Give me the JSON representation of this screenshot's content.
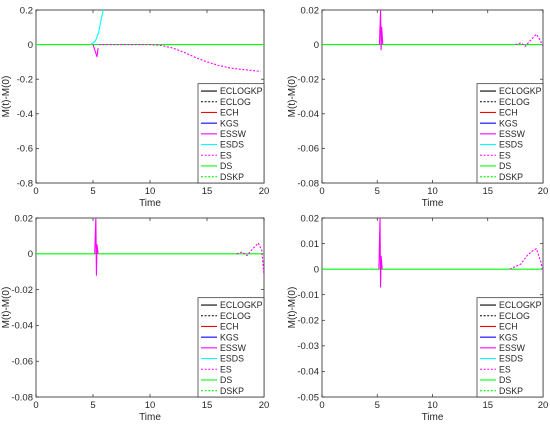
{
  "figure": {
    "background": "#ffffff",
    "axis_color": "#262626"
  },
  "legend_items": [
    {
      "label": "ECLOGKP",
      "color": "#000000",
      "dash": "solid"
    },
    {
      "label": "ECLOG",
      "color": "#000000",
      "dash": "dotted"
    },
    {
      "label": "ECH",
      "color": "#ff0000",
      "dash": "solid"
    },
    {
      "label": "KGS",
      "color": "#0000ff",
      "dash": "solid"
    },
    {
      "label": "ESSW",
      "color": "#ff00ff",
      "dash": "solid"
    },
    {
      "label": "ESDS",
      "color": "#00ffff",
      "dash": "solid"
    },
    {
      "label": "ES",
      "color": "#ff00ff",
      "dash": "dotted"
    },
    {
      "label": "DS",
      "color": "#00ff00",
      "dash": "solid"
    },
    {
      "label": "DSKP",
      "color": "#00ff00",
      "dash": "dotted"
    }
  ],
  "chart_data": [
    {
      "type": "line",
      "xlabel": "Time",
      "ylabel": "M(t)-M(0)",
      "xlim": [
        0,
        20
      ],
      "ylim": [
        -0.8,
        0.2
      ],
      "xticks": [
        "0",
        "5",
        "10",
        "15",
        "20"
      ],
      "yticks": [
        "0.2",
        "0",
        "-0.2",
        "-0.4",
        "-0.6",
        "-0.8"
      ],
      "legend_position": "bottom-right",
      "series": [
        {
          "name": "DS",
          "x": [
            0,
            20
          ],
          "y": [
            0,
            0
          ]
        },
        {
          "name": "ESDS",
          "x": [
            4.8,
            5.2,
            5.5,
            5.7,
            5.9
          ],
          "y": [
            0,
            0.02,
            0.07,
            0.14,
            0.2
          ]
        },
        {
          "name": "ESSW",
          "x": [
            5.0,
            5.1,
            5.25,
            5.35,
            5.45
          ],
          "y": [
            0,
            -0.02,
            -0.05,
            -0.07,
            -0.02
          ]
        },
        {
          "name": "ES",
          "x": [
            5.5,
            8,
            10,
            11,
            12,
            13,
            14,
            15,
            16,
            17,
            18,
            19,
            19.7
          ],
          "y": [
            0,
            0,
            0,
            -0.005,
            -0.02,
            -0.045,
            -0.075,
            -0.1,
            -0.12,
            -0.135,
            -0.143,
            -0.15,
            -0.155
          ]
        }
      ]
    },
    {
      "type": "line",
      "xlabel": "Time",
      "ylabel": "M(t)-M(0)",
      "xlim": [
        0,
        20
      ],
      "ylim": [
        -0.08,
        0.02
      ],
      "xticks": [
        "0",
        "5",
        "10",
        "15",
        "20"
      ],
      "yticks": [
        "0.02",
        "0",
        "-0.02",
        "-0.04",
        "-0.06",
        "-0.08"
      ],
      "legend_position": "bottom-right",
      "series": [
        {
          "name": "DS",
          "x": [
            0,
            20
          ],
          "y": [
            0,
            0
          ]
        },
        {
          "name": "ESSW",
          "x": [
            5.2,
            5.3,
            5.35,
            5.4,
            5.5
          ],
          "y": [
            0,
            0.02,
            -0.003,
            0.01,
            0
          ]
        },
        {
          "name": "ES",
          "x": [
            17.5,
            18,
            18.4,
            18.8,
            19.1,
            19.4,
            19.7,
            20
          ],
          "y": [
            0,
            0.001,
            -0.001,
            0.002,
            0.004,
            0.006,
            0.003,
            -0.001
          ]
        }
      ]
    },
    {
      "type": "line",
      "xlabel": "Time",
      "ylabel": "M(t)-M(0)",
      "xlim": [
        0,
        20
      ],
      "ylim": [
        -0.08,
        0.02
      ],
      "xticks": [
        "0",
        "5",
        "10",
        "15",
        "20"
      ],
      "yticks": [
        "0.02",
        "0",
        "-0.02",
        "-0.04",
        "-0.06",
        "-0.08"
      ],
      "legend_position": "bottom-right",
      "series": [
        {
          "name": "DS",
          "x": [
            0,
            20
          ],
          "y": [
            0,
            0
          ]
        },
        {
          "name": "ESSW",
          "x": [
            5.15,
            5.25,
            5.3,
            5.35,
            5.45
          ],
          "y": [
            0,
            0.02,
            -0.012,
            0.005,
            0
          ]
        },
        {
          "name": "ES",
          "x": [
            17.6,
            18.1,
            18.5,
            18.9,
            19.2,
            19.5,
            19.8,
            20
          ],
          "y": [
            0,
            0.001,
            -0.001,
            0.002,
            0.004,
            0.006,
            0.002,
            -0.012
          ]
        }
      ]
    },
    {
      "type": "line",
      "xlabel": "Time",
      "ylabel": "M(t)-M(0)",
      "xlim": [
        0,
        20
      ],
      "ylim": [
        -0.05,
        0.02
      ],
      "xticks": [
        "0",
        "5",
        "10",
        "15",
        "20"
      ],
      "yticks": [
        "0.02",
        "0.01",
        "0",
        "-0.01",
        "-0.02",
        "-0.03",
        "-0.04",
        "-0.05"
      ],
      "legend_position": "bottom-right",
      "series": [
        {
          "name": "DS",
          "x": [
            0,
            20
          ],
          "y": [
            0,
            0
          ]
        },
        {
          "name": "ESSW",
          "x": [
            5.15,
            5.25,
            5.3,
            5.35,
            5.45
          ],
          "y": [
            0,
            0.02,
            -0.007,
            0.005,
            0
          ]
        },
        {
          "name": "ES",
          "x": [
            17.0,
            17.5,
            18,
            18.5,
            19,
            19.4,
            19.8,
            20
          ],
          "y": [
            0,
            0.001,
            0.002,
            0.005,
            0.007,
            0.008,
            0.003,
            -0.001
          ]
        }
      ]
    }
  ]
}
